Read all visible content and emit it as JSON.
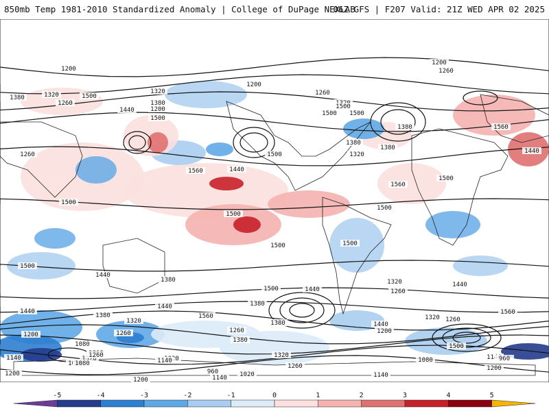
{
  "header": {
    "left": "850mb Temp 1981-2010 Standardized Anomaly | College of DuPage NEXLAB",
    "right": "06Z GFS | F207 Valid: 21Z WED APR 02 2025"
  },
  "colorbar": {
    "ticks": [
      "-5",
      "-4",
      "-3",
      "-2",
      "-1",
      "0",
      "1",
      "2",
      "3",
      "4",
      "5"
    ],
    "colors": [
      "#6a3d9a",
      "#253b8c",
      "#2f7fd0",
      "#5fa8e6",
      "#a8cdf0",
      "#dcebf8",
      "#fbe0df",
      "#f4b3b0",
      "#e07070",
      "#c8202a",
      "#8b0010",
      "#f4b400"
    ]
  },
  "map": {
    "background": "#ffffff",
    "contour_labels": [
      "1200",
      "1200",
      "1200",
      "1260",
      "1320",
      "1320",
      "1260",
      "1380",
      "1440",
      "1500",
      "1560",
      "1440",
      "1500",
      "1500",
      "1560",
      "1500",
      "1500",
      "1500",
      "1500",
      "1440",
      "1440",
      "1500",
      "1380",
      "1380",
      "1320",
      "1260",
      "1200",
      "1140",
      "1080",
      "1020",
      "960",
      "1140",
      "1200",
      "1260",
      "1320",
      "1380",
      "1440",
      "1500",
      "1560",
      "1260",
      "1380",
      "1440",
      "1500",
      "1560",
      "1320",
      "1260",
      "1200",
      "1140",
      "1080",
      "960",
      "1080",
      "1140",
      "1200",
      "1260",
      "1320",
      "1380",
      "1440",
      "1500",
      "1440",
      "1380",
      "1320",
      "1260",
      "1200",
      "1140",
      "1080",
      "1020",
      "1260",
      "1320",
      "1380",
      "1260",
      "1500",
      "1560",
      "1500",
      "1500",
      "1500",
      "1440",
      "1380",
      "1200",
      "1260",
      "1320",
      "1380"
    ]
  }
}
